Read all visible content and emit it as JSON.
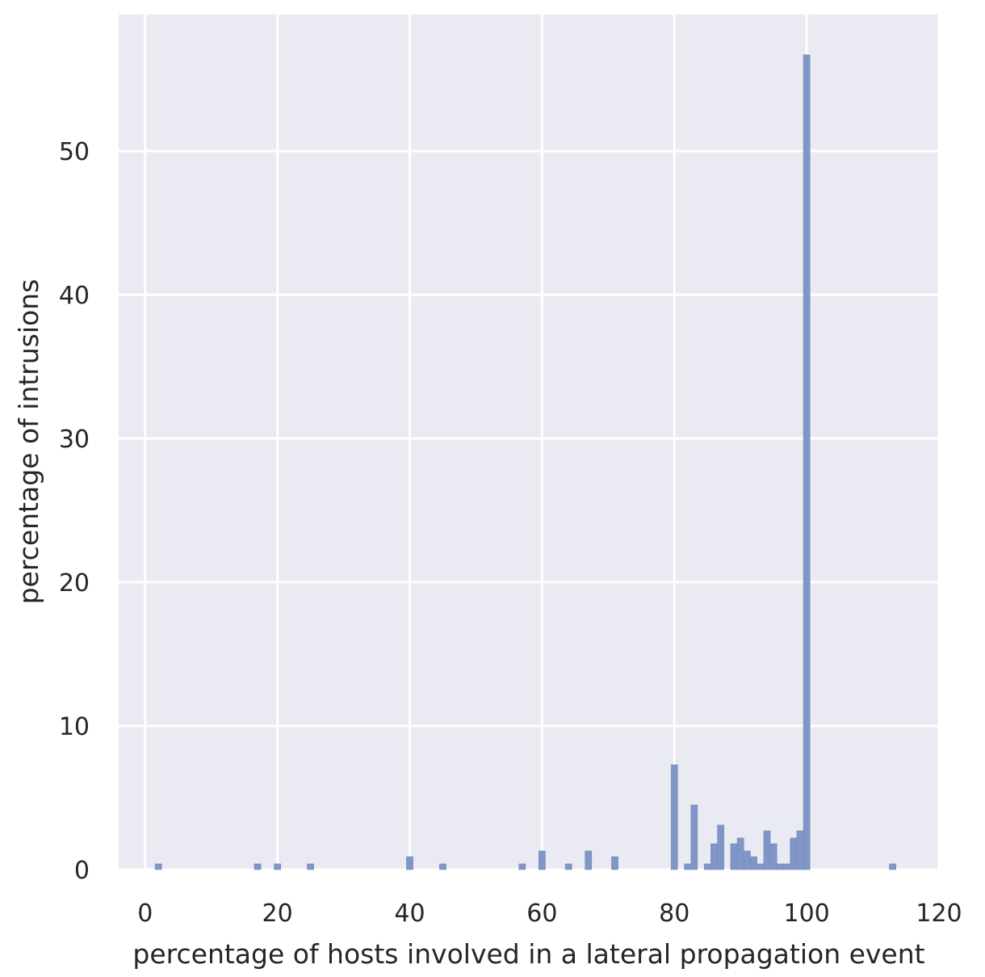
{
  "chart_data": {
    "type": "bar",
    "xlabel": "percentage of hosts involved in a lateral propagation event",
    "ylabel": "percentage of intrusions",
    "xlim": [
      -4,
      120
    ],
    "ylim": [
      0,
      59.5
    ],
    "xticks": [
      0,
      20,
      40,
      60,
      80,
      100,
      120
    ],
    "yticks": [
      0,
      10,
      20,
      30,
      40,
      50
    ],
    "grid": true,
    "bin_width": 1,
    "bars": [
      {
        "x": 2,
        "y": 0.4
      },
      {
        "x": 17,
        "y": 0.4
      },
      {
        "x": 20,
        "y": 0.4
      },
      {
        "x": 25,
        "y": 0.4
      },
      {
        "x": 40,
        "y": 0.9
      },
      {
        "x": 45,
        "y": 0.4
      },
      {
        "x": 57,
        "y": 0.4
      },
      {
        "x": 60,
        "y": 1.3
      },
      {
        "x": 64,
        "y": 0.4
      },
      {
        "x": 67,
        "y": 1.3
      },
      {
        "x": 71,
        "y": 0.9
      },
      {
        "x": 80,
        "y": 7.3
      },
      {
        "x": 82,
        "y": 0.4
      },
      {
        "x": 83,
        "y": 4.5
      },
      {
        "x": 85,
        "y": 0.4
      },
      {
        "x": 86,
        "y": 1.8
      },
      {
        "x": 87,
        "y": 3.1
      },
      {
        "x": 89,
        "y": 1.8
      },
      {
        "x": 90,
        "y": 2.2
      },
      {
        "x": 91,
        "y": 1.3
      },
      {
        "x": 92,
        "y": 0.9
      },
      {
        "x": 93,
        "y": 0.4
      },
      {
        "x": 94,
        "y": 2.7
      },
      {
        "x": 95,
        "y": 1.8
      },
      {
        "x": 96,
        "y": 0.4
      },
      {
        "x": 97,
        "y": 0.4
      },
      {
        "x": 98,
        "y": 2.2
      },
      {
        "x": 99,
        "y": 2.7
      },
      {
        "x": 100,
        "y": 56.7
      },
      {
        "x": 113,
        "y": 0.4
      }
    ],
    "colors": {
      "bar_fill": "#7f96c6",
      "bar_edge": "#7089bd",
      "plot_background": "#eaeaf2",
      "grid": "#ffffff",
      "text": "#262626"
    }
  }
}
